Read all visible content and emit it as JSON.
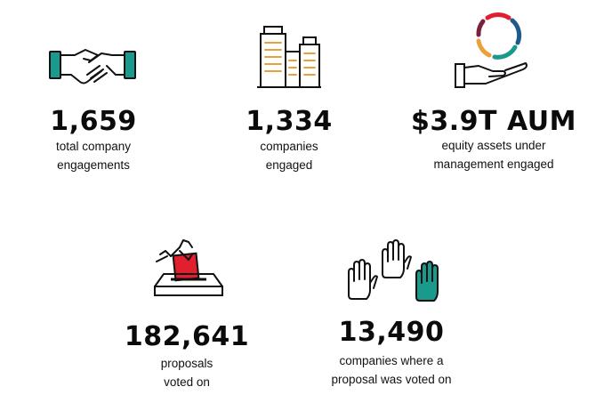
{
  "stats": [
    {
      "icon": "handshake-icon",
      "value": "1,659",
      "label_lines": [
        "total company",
        "engagements"
      ]
    },
    {
      "icon": "office-buildings-icon",
      "value": "1,334",
      "label_lines": [
        "companies",
        "engaged"
      ]
    },
    {
      "icon": "hand-holding-globe-icon",
      "value": "$3.9T AUM",
      "label_lines": [
        "equity assets under",
        "management engaged"
      ]
    },
    {
      "icon": "ballot-box-icon",
      "value": "182,641",
      "label_lines": [
        "proposals",
        "voted on"
      ]
    },
    {
      "icon": "raised-hands-icon",
      "value": "13,490",
      "label_lines": [
        "companies where a",
        "proposal was voted on"
      ]
    }
  ],
  "colors": {
    "teal": "#1a9a8c",
    "red": "#e0202e",
    "orange": "#e9a23b",
    "blue": "#1f5a8c",
    "maroon": "#7a1f3d",
    "ink": "#111111"
  }
}
